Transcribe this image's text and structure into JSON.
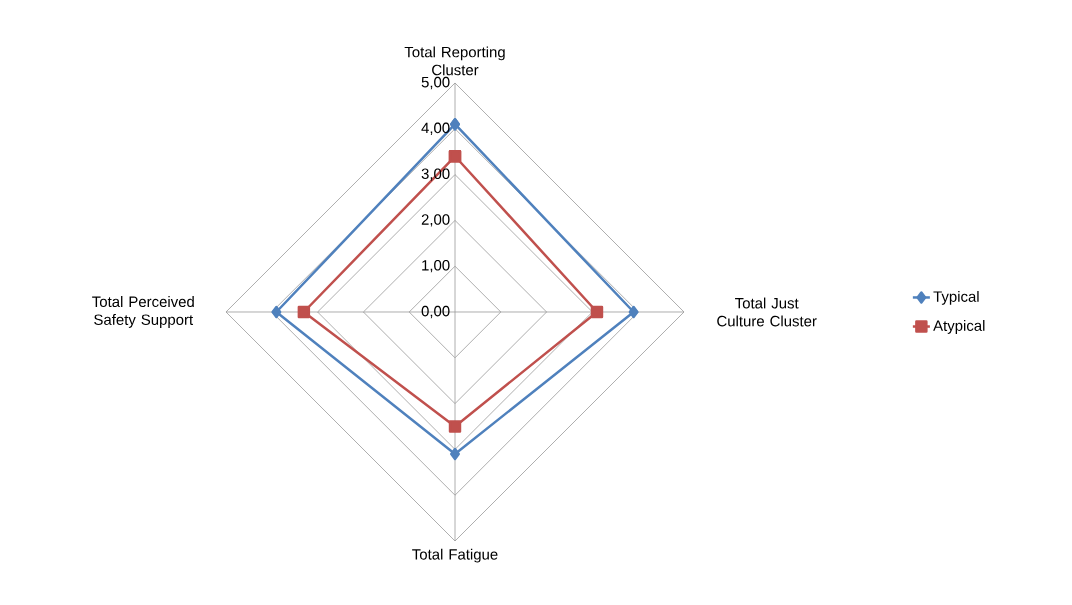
{
  "chart_data": {
    "type": "radar",
    "categories": [
      "Total Reporting Cluster",
      "Total Just Culture Cluster",
      "Total Fatigue",
      "Total Perceived Safety Support"
    ],
    "series": [
      {
        "name": "Typical",
        "color": "#4f81bd",
        "marker": "diamond",
        "values": [
          4.1,
          3.9,
          3.1,
          3.9
        ]
      },
      {
        "name": "Atypical",
        "color": "#c0504d",
        "marker": "square",
        "values": [
          3.4,
          3.1,
          2.5,
          3.3
        ]
      }
    ],
    "ylim": [
      0,
      5
    ],
    "yticks": [
      {
        "value": 0,
        "label": "0,00"
      },
      {
        "value": 1,
        "label": "1,00"
      },
      {
        "value": 2,
        "label": "2,00"
      },
      {
        "value": 3,
        "label": "3,00"
      },
      {
        "value": 4,
        "label": "4,00"
      },
      {
        "value": 5,
        "label": "5,00"
      }
    ],
    "grid": true,
    "legend": "right"
  }
}
